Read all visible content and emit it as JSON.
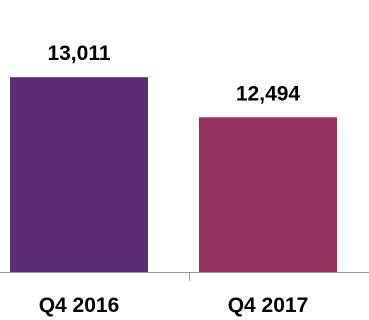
{
  "chart_data": {
    "type": "bar",
    "title": "",
    "xlabel": "",
    "ylabel": "",
    "categories": [
      "Q4 2016",
      "Q4 2017"
    ],
    "values": [
      13011,
      12494
    ],
    "value_labels": [
      "13,011",
      "12,494"
    ],
    "colors": [
      "#5b2d73",
      "#93325f"
    ],
    "ylim": [
      10500,
      13400
    ],
    "grid": false,
    "legend": "none"
  }
}
